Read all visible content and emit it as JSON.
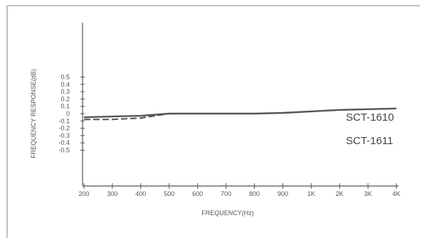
{
  "chart_data": {
    "type": "line",
    "xlabel": "FREQUENCY(Hz)",
    "ylabel": "FREQUENCY RESPONSE(dB)",
    "categories": [
      "200",
      "300",
      "400",
      "500",
      "600",
      "700",
      "800",
      "900",
      "1K",
      "2K",
      "3K",
      "4K"
    ],
    "y_ticks": [
      "0.5",
      "0.4",
      "0.3",
      "0.2",
      "0.1",
      "0",
      "-0.1",
      "-0.2",
      "-0.3",
      "-0.4",
      "-0.5"
    ],
    "ylim": [
      -0.5,
      0.6
    ],
    "grid": false,
    "legend_position": "right",
    "series": [
      {
        "name": "SCT-1610",
        "style": "solid",
        "color": "#555555",
        "values": [
          -0.05,
          -0.04,
          -0.03,
          0.0,
          0.0,
          0.0,
          0.0,
          0.01,
          0.03,
          0.05,
          0.06,
          0.07
        ]
      },
      {
        "name": "SCT-1611",
        "style": "dashed",
        "color": "#555555",
        "values": [
          -0.08,
          -0.08,
          -0.06,
          0.0,
          0.0,
          0.0,
          0.0,
          0.01,
          0.03,
          0.05,
          0.06,
          0.07
        ]
      }
    ]
  },
  "colors": {
    "axis": "#555555",
    "frame": "#999999",
    "text": "#555555"
  }
}
